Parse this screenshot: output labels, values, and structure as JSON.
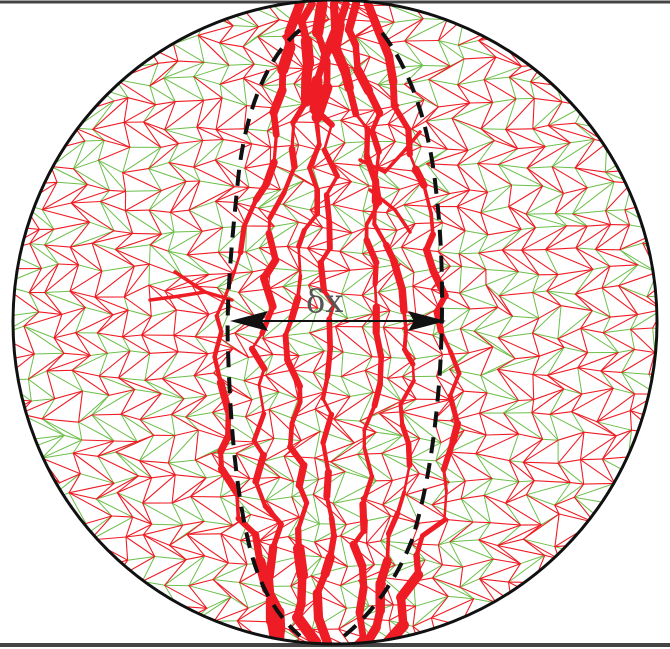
{
  "figure": {
    "delta_label": "δx",
    "colors": {
      "background": "#ffffff",
      "disk_outline": "#111111",
      "platen": "#444444",
      "tensile_chains": "#ee1c24",
      "compressive_chains": "#6cbf4a",
      "envelope": "#111111",
      "arrow": "#111111"
    }
  }
}
